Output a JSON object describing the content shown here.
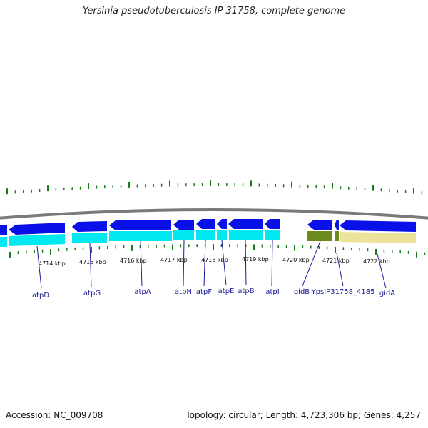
{
  "header": {
    "title": "Yersinia pseudotuberculosis IP 31758, complete genome"
  },
  "footer": {
    "accession": "Accession: NC_009708",
    "summary": "Topology: circular; Length: 4,723,306 bp; Genes: 4,257"
  },
  "colors": {
    "backbone": "#7a7a7a",
    "gene_blue": "#0a10e8",
    "cds_cyan": "#00e8f0",
    "gene_olive": "#6b8a1e",
    "cds_khaki": "#ece39a",
    "tick_green": "#1a7a1a",
    "label_blue": "#1a1a9a"
  },
  "kbp_ticks": [
    "4714 kbp",
    "4715 kbp",
    "4716 kbp",
    "4717 kbp",
    "4718 kbp",
    "4719 kbp",
    "4720 kbp",
    "4721 kbp",
    "4722 kbp"
  ],
  "genes": [
    "atpD",
    "atpG",
    "atpA",
    "atpH",
    "atpF",
    "atpE",
    "atpB",
    "atpI",
    "gidB",
    "YpsIP31758_4185",
    "gidA"
  ]
}
